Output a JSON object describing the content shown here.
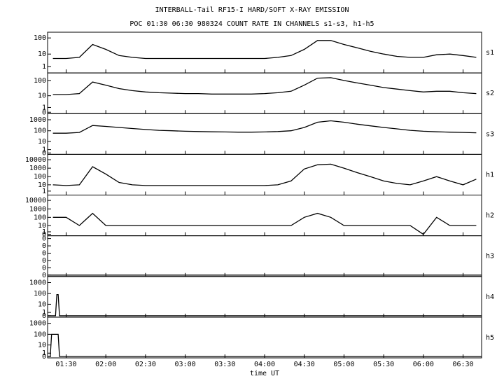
{
  "chart_data": {
    "type": "line",
    "title": "INTERBALL-Tail RF15-I HARD/SOFT X-RAY EMISSION",
    "subtitle": "POC 01:30 06:30 980324  COUNT RATE IN CHANNELS s1-s3, h1-h5",
    "xlabel": "time UT",
    "color": "#000000",
    "xlim": [
      76,
      404
    ],
    "xticks": [
      {
        "value": 90,
        "label": "01:30"
      },
      {
        "value": 120,
        "label": "02:00"
      },
      {
        "value": 150,
        "label": "02:30"
      },
      {
        "value": 180,
        "label": "03:00"
      },
      {
        "value": 210,
        "label": "03:30"
      },
      {
        "value": 240,
        "label": "04:00"
      },
      {
        "value": 270,
        "label": "04:30"
      },
      {
        "value": 300,
        "label": "05:00"
      },
      {
        "value": 330,
        "label": "05:30"
      },
      {
        "value": 360,
        "label": "06:00"
      },
      {
        "value": 390,
        "label": "06:30"
      }
    ],
    "panels": [
      {
        "name": "s1",
        "yscale": "log1p",
        "ylim": [
          0,
          150
        ],
        "yticks": [
          1,
          10,
          100
        ],
        "x": [
          80,
          90,
          100,
          110,
          120,
          130,
          140,
          150,
          160,
          170,
          180,
          190,
          200,
          210,
          220,
          230,
          240,
          250,
          260,
          270,
          280,
          290,
          300,
          310,
          320,
          330,
          340,
          350,
          360,
          370,
          380,
          390,
          400
        ],
        "values": [
          5,
          5,
          6,
          40,
          20,
          8,
          6,
          5,
          5,
          5,
          5,
          5,
          5,
          5,
          5,
          5,
          5,
          6,
          8,
          20,
          70,
          70,
          40,
          25,
          15,
          10,
          7,
          6,
          6,
          9,
          10,
          8,
          6
        ]
      },
      {
        "name": "s2",
        "yscale": "log1p",
        "ylim": [
          0,
          200
        ],
        "yticks": [
          0,
          1,
          10,
          100
        ],
        "x": [
          80,
          90,
          100,
          110,
          120,
          130,
          140,
          150,
          160,
          170,
          180,
          190,
          200,
          210,
          220,
          230,
          240,
          250,
          260,
          270,
          280,
          290,
          300,
          310,
          320,
          330,
          340,
          350,
          360,
          370,
          380,
          390,
          400
        ],
        "values": [
          12,
          12,
          14,
          80,
          50,
          30,
          22,
          18,
          16,
          15,
          14,
          14,
          13,
          13,
          13,
          13,
          14,
          16,
          20,
          50,
          140,
          150,
          100,
          70,
          50,
          35,
          28,
          22,
          18,
          20,
          20,
          16,
          14
        ]
      },
      {
        "name": "s3",
        "yscale": "log1p",
        "ylim": [
          0,
          2000
        ],
        "yticks": [
          0,
          1,
          10,
          100,
          1000
        ],
        "x": [
          80,
          90,
          100,
          110,
          120,
          130,
          140,
          150,
          160,
          170,
          180,
          190,
          200,
          210,
          220,
          230,
          240,
          250,
          260,
          270,
          280,
          290,
          300,
          310,
          320,
          330,
          340,
          350,
          360,
          370,
          380,
          390,
          400
        ],
        "values": [
          60,
          60,
          70,
          300,
          250,
          200,
          160,
          130,
          110,
          100,
          90,
          85,
          80,
          78,
          75,
          75,
          78,
          85,
          100,
          200,
          600,
          800,
          600,
          400,
          280,
          200,
          150,
          110,
          90,
          80,
          75,
          70,
          65
        ]
      },
      {
        "name": "h1",
        "yscale": "log1p",
        "ylim": [
          0,
          20000
        ],
        "yticks": [
          1,
          10,
          100,
          1000,
          10000
        ],
        "x": [
          80,
          90,
          100,
          110,
          120,
          130,
          140,
          150,
          160,
          170,
          180,
          190,
          200,
          210,
          220,
          230,
          240,
          250,
          260,
          270,
          280,
          290,
          300,
          310,
          320,
          330,
          340,
          350,
          360,
          370,
          380,
          390,
          400
        ],
        "values": [
          10,
          8,
          10,
          1500,
          200,
          20,
          10,
          8,
          8,
          8,
          8,
          8,
          8,
          8,
          8,
          8,
          8,
          10,
          30,
          800,
          2500,
          3000,
          1000,
          300,
          100,
          30,
          15,
          10,
          30,
          100,
          30,
          10,
          50
        ]
      },
      {
        "name": "h2",
        "yscale": "log1p",
        "ylim": [
          0,
          20000
        ],
        "yticks": [
          0,
          1,
          10,
          100,
          1000,
          10000
        ],
        "x": [
          80,
          90,
          100,
          110,
          120,
          130,
          140,
          150,
          160,
          170,
          180,
          190,
          200,
          210,
          220,
          230,
          240,
          250,
          260,
          270,
          280,
          290,
          300,
          310,
          320,
          330,
          340,
          350,
          360,
          370,
          380,
          390,
          400
        ],
        "values": [
          100,
          100,
          10,
          300,
          10,
          10,
          10,
          10,
          10,
          10,
          10,
          10,
          10,
          10,
          10,
          10,
          10,
          10,
          10,
          100,
          300,
          100,
          10,
          10,
          10,
          10,
          10,
          10,
          0,
          100,
          10,
          10,
          10
        ]
      },
      {
        "name": "h3",
        "yscale": "linear",
        "ylim": [
          0,
          1
        ],
        "yticks": [
          {
            "value": 0,
            "label": "0"
          },
          {
            "value": 0.2,
            "label": "0"
          },
          {
            "value": 0.4,
            "label": "0"
          },
          {
            "value": 0.6,
            "label": "0"
          },
          {
            "value": 0.8,
            "label": "0"
          },
          {
            "value": 1,
            "label": "0"
          }
        ],
        "x": [
          76,
          404
        ],
        "values": [
          0,
          0
        ]
      },
      {
        "name": "h4",
        "yscale": "log1p",
        "ylim": [
          0,
          2000
        ],
        "yticks": [
          0,
          1,
          10,
          100,
          1000
        ],
        "x": [
          76,
          82,
          83,
          84,
          85,
          404
        ],
        "values": [
          0,
          0,
          80,
          80,
          0,
          0
        ]
      },
      {
        "name": "h5",
        "yscale": "log1p",
        "ylim": [
          0,
          2000
        ],
        "yticks": [
          0,
          1,
          10,
          100,
          1000
        ],
        "x": [
          76,
          78,
          79,
          84,
          85,
          404
        ],
        "values": [
          0,
          0,
          100,
          100,
          0,
          0
        ]
      }
    ]
  }
}
